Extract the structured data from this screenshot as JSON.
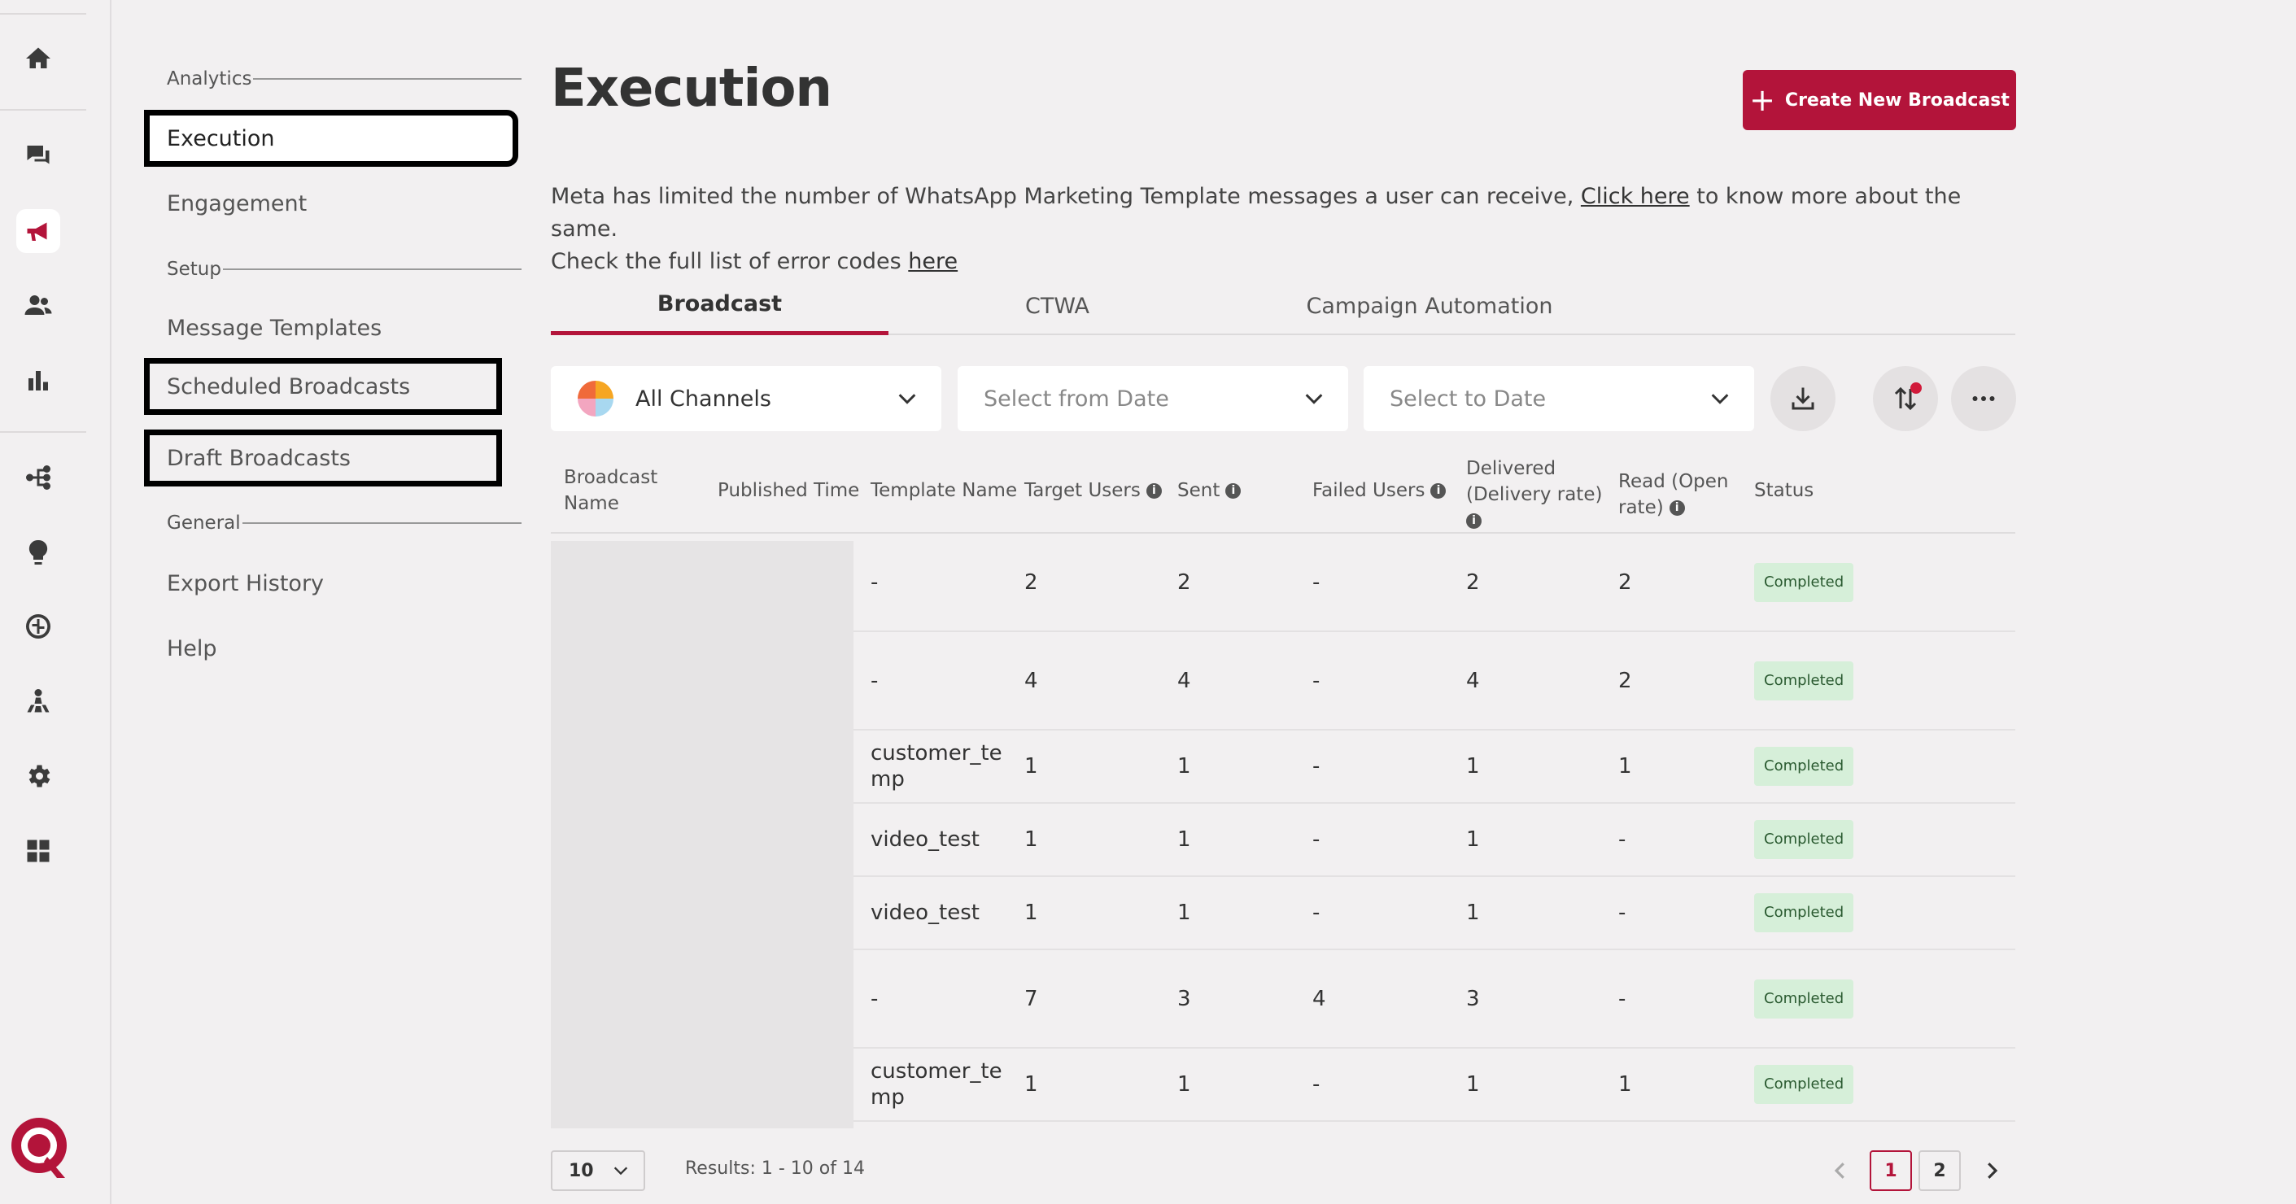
{
  "rail": {
    "icons": [
      "home-icon",
      "chat-icon",
      "megaphone-icon",
      "users-icon",
      "bar-chart-icon",
      "flow-icon",
      "lightbulb-icon",
      "brain-icon",
      "org-icon",
      "gear-icon",
      "integrations-icon"
    ],
    "active": "megaphone-icon"
  },
  "subnav": {
    "sections": [
      {
        "label": "Analytics",
        "items": [
          "Execution",
          "Engagement"
        ]
      },
      {
        "label": "Setup",
        "items": [
          "Message Templates",
          "Scheduled Broadcasts",
          "Draft Broadcasts"
        ]
      },
      {
        "label": "General",
        "items": [
          "Export History",
          "Help"
        ]
      }
    ]
  },
  "header": {
    "title": "Execution",
    "create_button": "Create New Broadcast"
  },
  "notice": {
    "text1": "Meta has limited the number of WhatsApp Marketing Template messages a user can receive, ",
    "link1": "Click here",
    "text2": " to know more about the same.",
    "text3": "Check the full list of error codes ",
    "link2": "here"
  },
  "tabs": [
    "Broadcast",
    "CTWA",
    "Campaign Automation"
  ],
  "filters": {
    "channel": "All Channels",
    "from_date_placeholder": "Select from Date",
    "to_date_placeholder": "Select to Date"
  },
  "table": {
    "columns": [
      "Broadcast Name",
      "Published Time",
      "Template Name",
      "Target Users",
      "Sent",
      "Failed Users",
      "Delivered (Delivery rate)",
      "Read (Open rate)",
      "Status"
    ],
    "rows": [
      {
        "template": "-",
        "target": "2",
        "sent": "2",
        "failed": "-",
        "delivered": "2",
        "read": "2",
        "status": "Completed"
      },
      {
        "template": "-",
        "target": "4",
        "sent": "4",
        "failed": "-",
        "delivered": "4",
        "read": "2",
        "status": "Completed"
      },
      {
        "template": "customer_temp",
        "target": "1",
        "sent": "1",
        "failed": "-",
        "delivered": "1",
        "read": "1",
        "status": "Completed"
      },
      {
        "template": "video_test",
        "target": "1",
        "sent": "1",
        "failed": "-",
        "delivered": "1",
        "read": "-",
        "status": "Completed"
      },
      {
        "template": "video_test",
        "target": "1",
        "sent": "1",
        "failed": "-",
        "delivered": "1",
        "read": "-",
        "status": "Completed"
      },
      {
        "template": "-",
        "target": "7",
        "sent": "3",
        "failed": "4",
        "delivered": "3",
        "read": "-",
        "status": "Completed"
      },
      {
        "template": "customer_temp",
        "target": "1",
        "sent": "1",
        "failed": "-",
        "delivered": "1",
        "read": "1",
        "status": "Completed"
      }
    ]
  },
  "footer": {
    "page_size": "10",
    "results": "Results: 1 - 10 of 14",
    "pages": [
      "1",
      "2"
    ],
    "current_page": "1"
  },
  "colors": {
    "brand": "#b3143a",
    "status_bg": "#d6efd9"
  }
}
